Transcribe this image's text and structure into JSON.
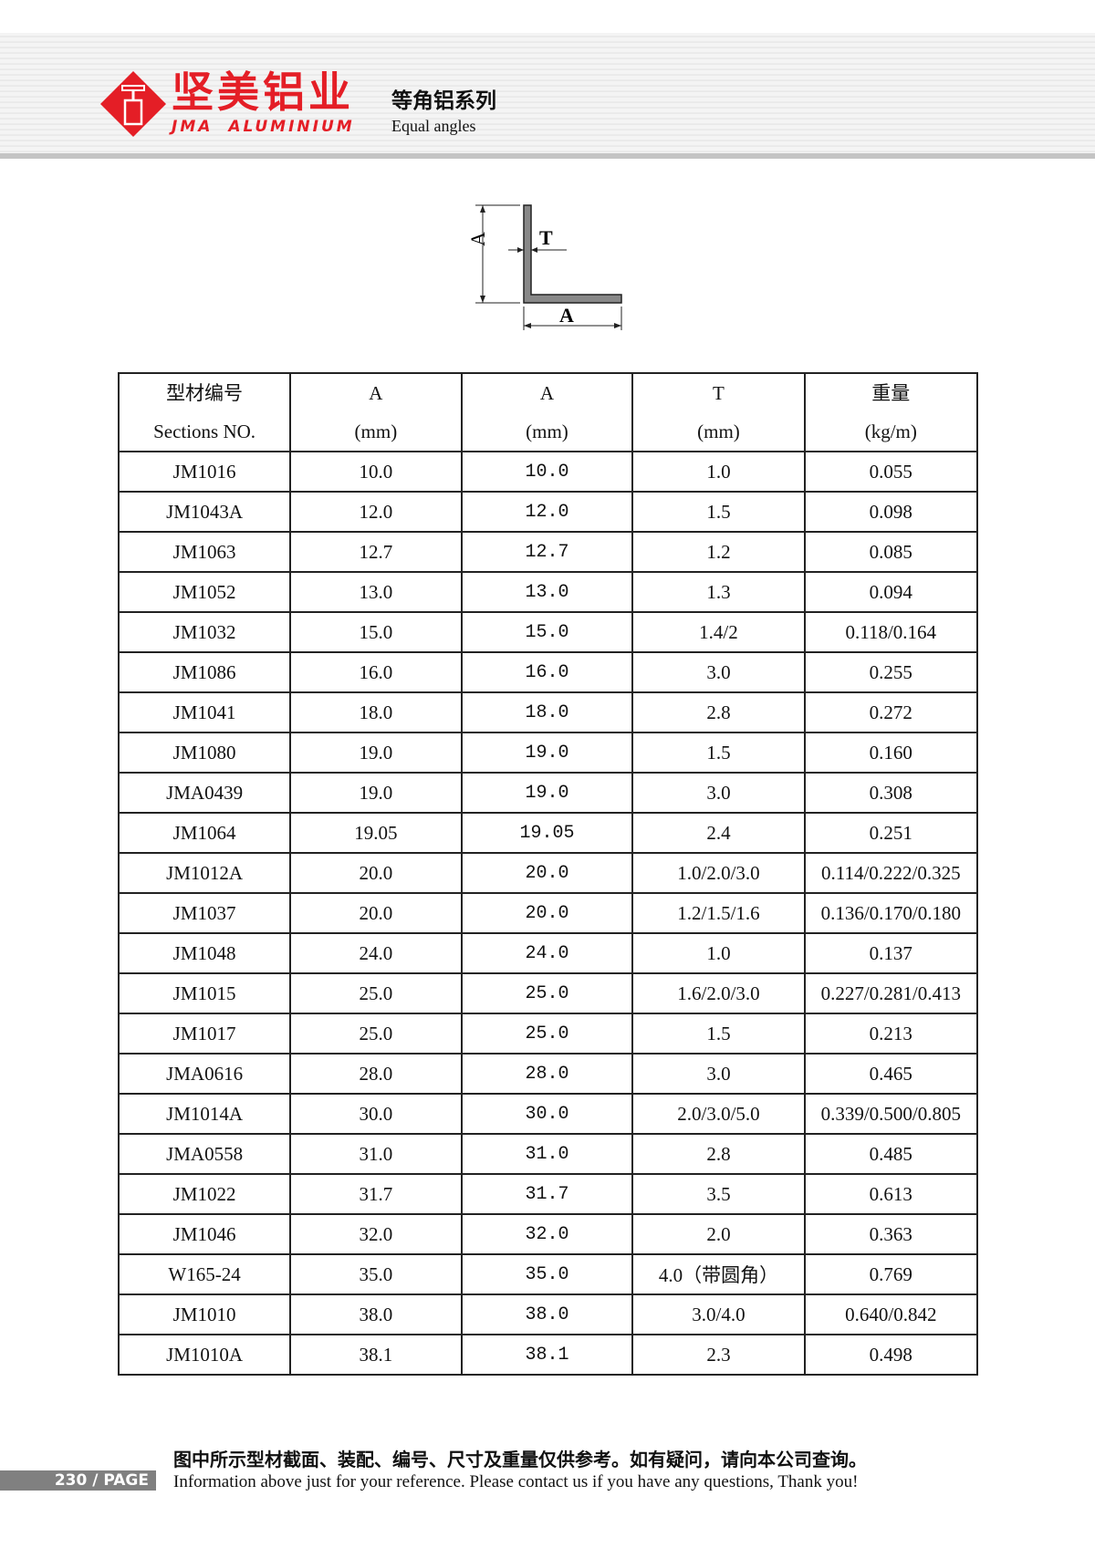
{
  "header": {
    "brand_cn": "坚美铝业",
    "brand_en": "JMA ALUMINIUM",
    "series_cn": "等角铝系列",
    "series_en": "Equal angles",
    "brand_color": "#e41e26"
  },
  "diagram": {
    "label_a_vertical": "A",
    "label_t": "T",
    "label_a_horizontal": "A"
  },
  "table": {
    "headers": [
      [
        "型材编号",
        "Sections NO."
      ],
      [
        "A",
        "(mm)"
      ],
      [
        "A",
        "(mm)"
      ],
      [
        "T",
        "(mm)"
      ],
      [
        "重量",
        "(kg/m)"
      ]
    ],
    "rows": [
      [
        "JM1016",
        "10.0",
        "10.0",
        "1.0",
        "0.055"
      ],
      [
        "JM1043A",
        "12.0",
        "12.0",
        "1.5",
        "0.098"
      ],
      [
        "JM1063",
        "12.7",
        "12.7",
        "1.2",
        "0.085"
      ],
      [
        "JM1052",
        "13.0",
        "13.0",
        "1.3",
        "0.094"
      ],
      [
        "JM1032",
        "15.0",
        "15.0",
        "1.4/2",
        "0.118/0.164"
      ],
      [
        "JM1086",
        "16.0",
        "16.0",
        "3.0",
        "0.255"
      ],
      [
        "JM1041",
        "18.0",
        "18.0",
        "2.8",
        "0.272"
      ],
      [
        "JM1080",
        "19.0",
        "19.0",
        "1.5",
        "0.160"
      ],
      [
        "JMA0439",
        "19.0",
        "19.0",
        "3.0",
        "0.308"
      ],
      [
        "JM1064",
        "19.05",
        "19.05",
        "2.4",
        "0.251"
      ],
      [
        "JM1012A",
        "20.0",
        "20.0",
        "1.0/2.0/3.0",
        "0.114/0.222/0.325"
      ],
      [
        "JM1037",
        "20.0",
        "20.0",
        "1.2/1.5/1.6",
        "0.136/0.170/0.180"
      ],
      [
        "JM1048",
        "24.0",
        "24.0",
        "1.0",
        "0.137"
      ],
      [
        "JM1015",
        "25.0",
        "25.0",
        "1.6/2.0/3.0",
        "0.227/0.281/0.413"
      ],
      [
        "JM1017",
        "25.0",
        "25.0",
        "1.5",
        "0.213"
      ],
      [
        "JMA0616",
        "28.0",
        "28.0",
        "3.0",
        "0.465"
      ],
      [
        "JM1014A",
        "30.0",
        "30.0",
        "2.0/3.0/5.0",
        "0.339/0.500/0.805"
      ],
      [
        "JMA0558",
        "31.0",
        "31.0",
        "2.8",
        "0.485"
      ],
      [
        "JM1022",
        "31.7",
        "31.7",
        "3.5",
        "0.613"
      ],
      [
        "JM1046",
        "32.0",
        "32.0",
        "2.0",
        "0.363"
      ],
      [
        "W165-24",
        "35.0",
        "35.0",
        "4.0（带圆角）",
        "0.769"
      ],
      [
        "JM1010",
        "38.0",
        "38.0",
        "3.0/4.0",
        "0.640/0.842"
      ],
      [
        "JM1010A",
        "38.1",
        "38.1",
        "2.3",
        "0.498"
      ]
    ]
  },
  "footer": {
    "page": "230 / PAGE",
    "note_cn": "图中所示型材截面、装配、编号、尺寸及重量仅供参考。如有疑问，请向本公司查询。",
    "note_en": "Information above just for your reference. Please contact us if you have any questions, Thank you!"
  }
}
